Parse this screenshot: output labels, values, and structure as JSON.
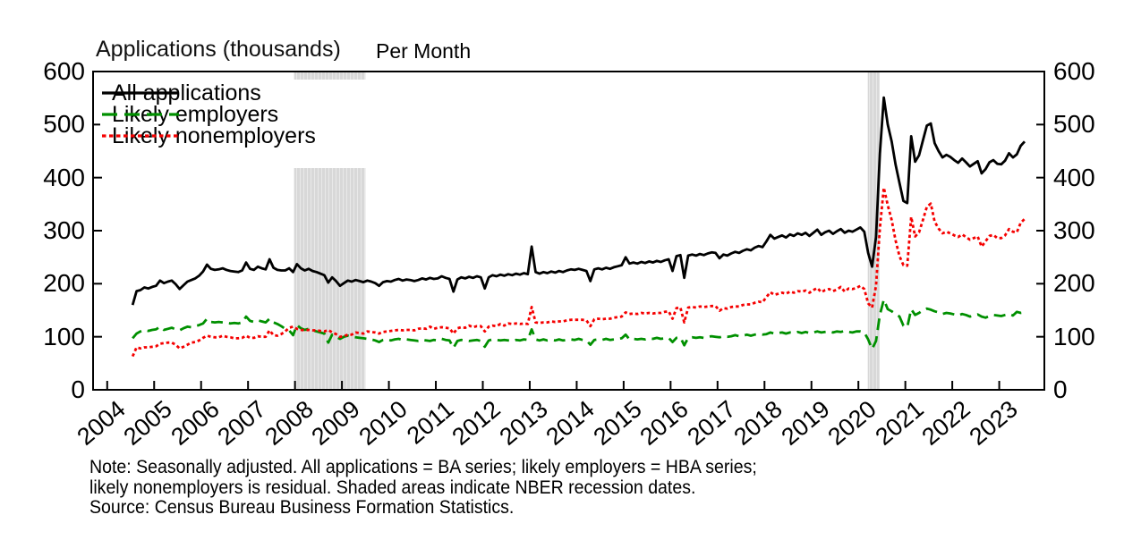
{
  "title": "Applications (thousands)",
  "subtitle": "Per Month",
  "legend": [
    {
      "label": "All applications",
      "color": "#000000",
      "style": "solid"
    },
    {
      "label": "Likely employers",
      "color": "#009000",
      "style": "long-dash"
    },
    {
      "label": "Likely nonemployers",
      "color": "#f50000",
      "style": "dot"
    }
  ],
  "note_lines": [
    "Note: Seasonally adjusted. All applications = BA series; likely employers = HBA series;",
    "likely nonemployers is residual. Shaded areas indicate NBER recession dates.",
    "Source: Census Bureau Business Formation Statistics."
  ],
  "chart_data": {
    "type": "line",
    "title": "Applications (thousands) Per Month",
    "ylabel": "Applications (thousands)",
    "frequency": "monthly",
    "x_start_year": 2004,
    "x_start_month": 7,
    "xlim": [
      2003.68,
      2023.98
    ],
    "ylim": [
      0,
      600
    ],
    "y_ticks": [
      0,
      100,
      200,
      300,
      400,
      500,
      600
    ],
    "x_ticks": [
      2004,
      2005,
      2006,
      2007,
      2008,
      2009,
      2010,
      2011,
      2012,
      2013,
      2014,
      2015,
      2016,
      2017,
      2018,
      2019,
      2020,
      2021,
      2022,
      2023
    ],
    "grid": false,
    "legend_position": "upper-left",
    "recession_band_color": "#d8d8d8",
    "recession_bands": [
      [
        2007.98,
        2009.5
      ],
      [
        2020.2,
        2020.45
      ]
    ],
    "series": [
      {
        "name": "All applications",
        "color": "#000000",
        "line_style": "solid",
        "values": [
          160,
          186,
          188,
          193,
          191,
          194,
          196,
          206,
          201,
          204,
          206,
          199,
          190,
          197,
          204,
          207,
          210,
          215,
          223,
          236,
          228,
          226,
          227,
          229,
          226,
          224,
          223,
          222,
          225,
          240,
          228,
          226,
          232,
          229,
          227,
          246,
          230,
          226,
          225,
          225,
          229,
          222,
          237,
          229,
          225,
          228,
          224,
          222,
          219,
          216,
          202,
          212,
          205,
          196,
          201,
          206,
          204,
          207,
          205,
          203,
          206,
          204,
          201,
          196,
          203,
          205,
          204,
          207,
          209,
          206,
          208,
          207,
          205,
          207,
          210,
          208,
          211,
          209,
          210,
          214,
          211,
          209,
          185,
          208,
          212,
          210,
          213,
          211,
          214,
          212,
          191,
          212,
          216,
          214,
          217,
          215,
          218,
          216,
          219,
          217,
          220,
          218,
          270,
          222,
          219,
          222,
          220,
          223,
          221,
          224,
          222,
          225,
          227,
          226,
          228,
          226,
          224,
          205,
          227,
          229,
          227,
          230,
          228,
          231,
          233,
          235,
          250,
          238,
          240,
          238,
          241,
          239,
          242,
          240,
          243,
          241,
          244,
          246,
          224,
          252,
          254,
          211,
          253,
          255,
          253,
          256,
          254,
          257,
          259,
          258,
          248,
          255,
          253,
          257,
          260,
          258,
          262,
          265,
          263,
          268,
          271,
          269,
          280,
          292,
          285,
          288,
          291,
          287,
          293,
          290,
          295,
          292,
          296,
          290,
          296,
          302,
          292,
          297,
          300,
          294,
          299,
          303,
          296,
          300,
          298,
          302,
          306,
          298,
          258,
          232,
          288,
          445,
          551,
          500,
          468,
          425,
          390,
          356,
          352,
          478,
          430,
          442,
          470,
          498,
          502,
          465,
          450,
          438,
          443,
          439,
          433,
          428,
          436,
          429,
          421,
          426,
          431,
          408,
          416,
          429,
          433,
          426,
          425,
          432,
          446,
          438,
          444,
          460,
          468
        ]
      },
      {
        "name": "Likely employers",
        "color": "#009000",
        "line_style": "long-dash",
        "values": [
          97,
          106,
          110,
          113,
          111,
          113,
          114,
          119,
          113,
          115,
          117,
          114,
          112,
          116,
          119,
          118,
          120,
          122,
          125,
          134,
          128,
          127,
          128,
          127,
          126,
          125,
          126,
          125,
          127,
          138,
          130,
          128,
          131,
          129,
          127,
          134,
          127,
          124,
          120,
          115,
          112,
          103,
          122,
          116,
          113,
          115,
          112,
          110,
          108,
          106,
          89,
          104,
          100,
          96,
          100,
          102,
          100,
          99,
          98,
          97,
          96,
          95,
          93,
          90,
          94,
          95,
          93,
          95,
          96,
          94,
          95,
          94,
          93,
          92,
          94,
          93,
          92,
          94,
          93,
          96,
          94,
          93,
          79,
          92,
          94,
          93,
          92,
          93,
          94,
          92,
          81,
          93,
          95,
          94,
          93,
          94,
          93,
          92,
          94,
          93,
          95,
          94,
          114,
          95,
          93,
          95,
          93,
          94,
          93,
          95,
          93,
          94,
          95,
          94,
          96,
          94,
          93,
          85,
          94,
          95,
          94,
          96,
          94,
          95,
          96,
          97,
          104,
          95,
          96,
          95,
          96,
          95,
          97,
          96,
          98,
          96,
          97,
          98,
          90,
          98,
          99,
          84,
          98,
          99,
          98,
          99,
          98,
          100,
          101,
          100,
          99,
          101,
          100,
          101,
          103,
          101,
          102,
          104,
          102,
          104,
          105,
          104,
          105,
          108,
          106,
          107,
          108,
          106,
          108,
          107,
          109,
          107,
          109,
          107,
          108,
          110,
          108,
          109,
          110,
          108,
          110,
          109,
          111,
          109,
          108,
          110,
          110,
          108,
          95,
          77,
          92,
          141,
          170,
          152,
          148,
          143,
          138,
          121,
          118,
          152,
          141,
          145,
          150,
          153,
          151,
          148,
          146,
          143,
          145,
          144,
          142,
          140,
          143,
          141,
          138,
          140,
          142,
          138,
          136,
          139,
          141,
          140,
          139,
          141,
          143,
          140,
          147,
          145,
          146
        ]
      },
      {
        "name": "Likely nonemployers",
        "color": "#f50000",
        "line_style": "dot",
        "values": [
          63,
          80,
          78,
          80,
          80,
          81,
          82,
          87,
          88,
          89,
          89,
          85,
          78,
          81,
          85,
          89,
          90,
          93,
          98,
          102,
          100,
          99,
          99,
          102,
          100,
          99,
          97,
          97,
          98,
          102,
          98,
          98,
          101,
          100,
          100,
          112,
          103,
          102,
          105,
          110,
          117,
          119,
          115,
          113,
          112,
          113,
          112,
          112,
          111,
          110,
          113,
          108,
          105,
          100,
          101,
          104,
          104,
          108,
          107,
          106,
          110,
          109,
          108,
          106,
          109,
          110,
          111,
          112,
          113,
          112,
          113,
          113,
          112,
          115,
          116,
          115,
          119,
          115,
          117,
          118,
          117,
          116,
          106,
          116,
          118,
          117,
          121,
          118,
          120,
          120,
          110,
          119,
          121,
          120,
          124,
          121,
          125,
          124,
          125,
          124,
          125,
          124,
          156,
          127,
          126,
          127,
          127,
          129,
          128,
          129,
          129,
          131,
          132,
          132,
          132,
          132,
          131,
          120,
          133,
          134,
          133,
          134,
          134,
          136,
          137,
          138,
          146,
          143,
          144,
          143,
          145,
          144,
          145,
          144,
          145,
          145,
          147,
          148,
          134,
          154,
          155,
          127,
          155,
          156,
          155,
          157,
          156,
          157,
          158,
          158,
          149,
          154,
          153,
          156,
          157,
          157,
          160,
          161,
          161,
          164,
          166,
          165,
          175,
          184,
          179,
          181,
          183,
          181,
          185,
          183,
          186,
          185,
          187,
          183,
          188,
          192,
          184,
          188,
          190,
          186,
          189,
          194,
          185,
          191,
          190,
          192,
          196,
          190,
          163,
          155,
          196,
          304,
          381,
          348,
          320,
          282,
          252,
          235,
          234,
          326,
          289,
          297,
          320,
          345,
          351,
          317,
          304,
          295,
          298,
          295,
          291,
          288,
          293,
          288,
          283,
          286,
          289,
          270,
          280,
          290,
          292,
          286,
          286,
          291,
          303,
          298,
          297,
          315,
          322
        ]
      }
    ]
  }
}
